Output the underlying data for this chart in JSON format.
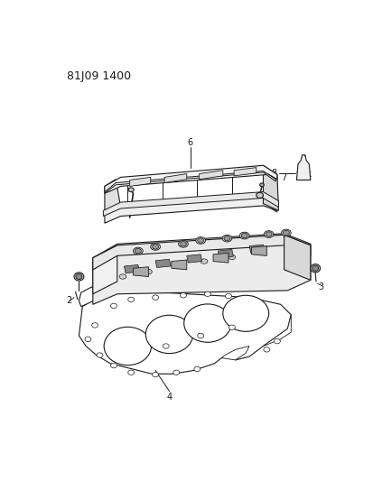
{
  "header_text": "81J09 1400",
  "background_color": "#ffffff",
  "line_color": "#1a1a1a",
  "figsize": [
    4.14,
    5.33
  ],
  "dpi": 100,
  "lw": 0.8,
  "label_fontsize": 7
}
